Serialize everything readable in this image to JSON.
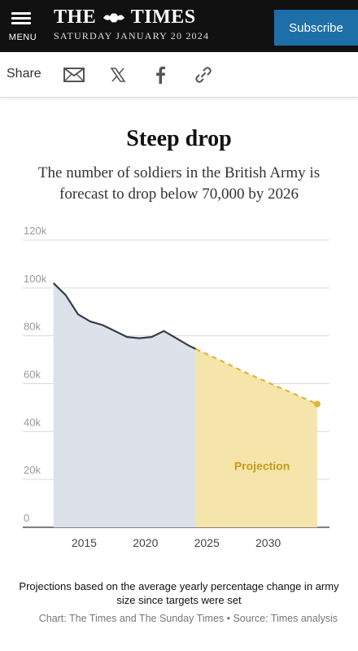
{
  "header": {
    "menu_label": "MENU",
    "logo_left": "THE",
    "logo_right": "TIMES",
    "date": "SATURDAY JANUARY 20 2024",
    "subscribe_label": "Subscribe"
  },
  "share": {
    "label": "Share",
    "icons": [
      "mail-icon",
      "x-icon",
      "facebook-icon",
      "link-icon"
    ]
  },
  "colors": {
    "header_bg": "#111111",
    "subscribe_bg": "#1e6fa8",
    "history_area": "#dde1ea",
    "projection_area": "#f5e5aa",
    "history_line": "#333d4d",
    "projection_line": "#e0b53a",
    "projection_text": "#c79a1e"
  },
  "chart_data": {
    "type": "line",
    "title": "Steep drop",
    "subtitle": "The number of soldiers in the British Army is forecast to drop below 70,000 by 2026",
    "ylim": [
      0,
      120000
    ],
    "y_ticks": [
      {
        "value": 0,
        "label": "0"
      },
      {
        "value": 20000,
        "label": "20k"
      },
      {
        "value": 40000,
        "label": "40k"
      },
      {
        "value": 60000,
        "label": "60k"
      },
      {
        "value": 80000,
        "label": "80k"
      },
      {
        "value": 100000,
        "label": "100k"
      },
      {
        "value": 120000,
        "label": "120k"
      }
    ],
    "xlim": [
      2010,
      2035
    ],
    "x_ticks": [
      2015,
      2020,
      2025,
      2030
    ],
    "grid": true,
    "series": [
      {
        "style": "solid",
        "x": [
          2012.5,
          2013.5,
          2014.5,
          2015.5,
          2016.5,
          2017.5,
          2018.5,
          2019.5,
          2020.5,
          2021.5,
          2022.5,
          2023.5,
          2024.1
        ],
        "y": [
          102000,
          97000,
          89000,
          86000,
          84500,
          82000,
          79500,
          79000,
          79500,
          82000,
          79000,
          76000,
          74500
        ]
      },
      {
        "name": "Projection",
        "style": "dashed",
        "x": [
          2024.1,
          2026,
          2028,
          2030,
          2032,
          2034
        ],
        "y": [
          74500,
          70000,
          65000,
          60500,
          56000,
          51500
        ]
      }
    ],
    "annotations": [
      {
        "text": "Projection",
        "x": 2029.5,
        "y": 24000
      }
    ]
  },
  "footnote": "Projections based on the average yearly percentage change in army size since targets were set",
  "source": "Chart: The Times and The Sunday Times • Source: Times analysis"
}
